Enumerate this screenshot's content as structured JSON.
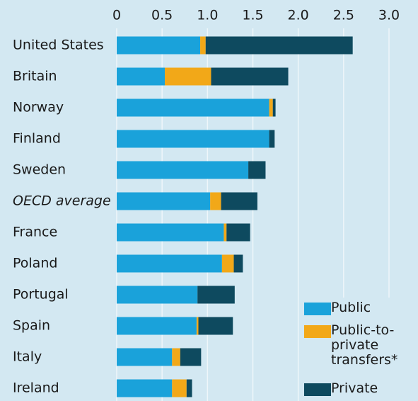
{
  "chart_data": {
    "type": "bar",
    "orientation": "horizontal",
    "stacked": true,
    "categories": [
      "United States",
      "Britain",
      "Norway",
      "Finland",
      "Sweden",
      "OECD average",
      "France",
      "Poland",
      "Portugal",
      "Spain",
      "Italy",
      "Ireland"
    ],
    "series": [
      {
        "name": "Public",
        "color": "#1aa2da",
        "values": [
          0.92,
          0.53,
          1.68,
          1.68,
          1.45,
          1.03,
          1.18,
          1.16,
          0.89,
          0.88,
          0.61,
          0.61
        ]
      },
      {
        "name": "Public-to-private transfers*",
        "color": "#f2a818",
        "values": [
          0.06,
          0.51,
          0.04,
          0,
          0,
          0.12,
          0.03,
          0.13,
          0,
          0.02,
          0.09,
          0.16
        ]
      },
      {
        "name": "Private",
        "color": "#0e4a5f",
        "values": [
          1.62,
          0.85,
          0.03,
          0.06,
          0.19,
          0.4,
          0.26,
          0.1,
          0.41,
          0.38,
          0.23,
          0.06
        ]
      }
    ],
    "xlim": [
      0,
      3
    ],
    "xticks": [
      0,
      0.5,
      {
        "value": 1,
        "label": "1.0"
      },
      1.5,
      {
        "value": 2,
        "label": "2.0"
      },
      2.5,
      {
        "value": 3,
        "label": "3.0"
      }
    ],
    "grid": true,
    "legend": "lower right"
  }
}
